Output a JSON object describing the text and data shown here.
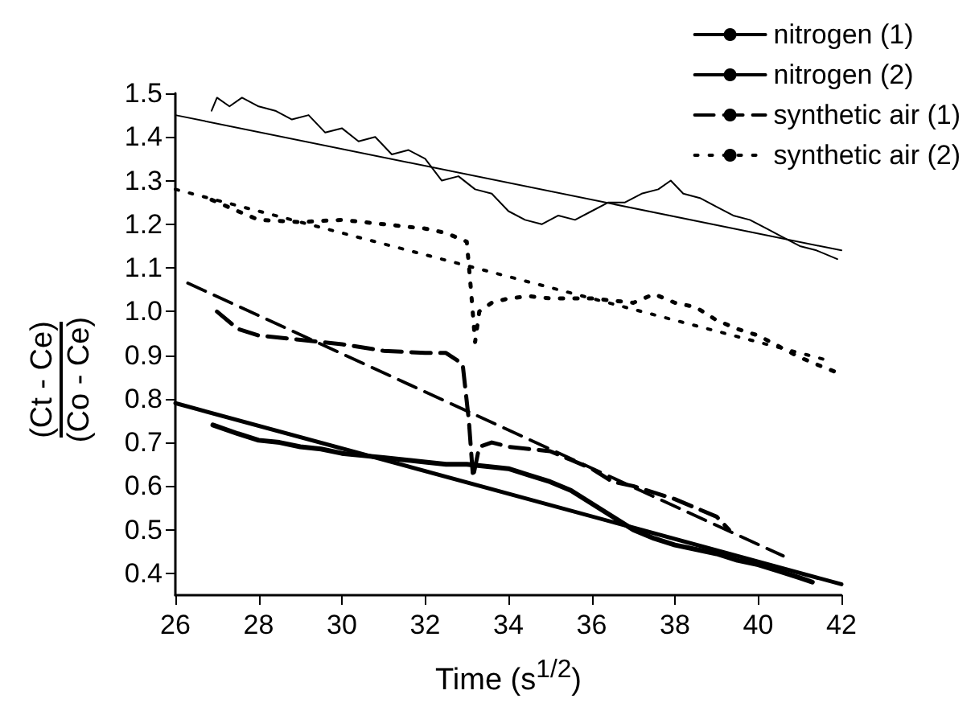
{
  "chart_data": {
    "type": "line",
    "xlabel": "Time (s$^{1/2}$)",
    "ylabel": "(Ct - Ce)\n(Co - Ce)",
    "xlim": [
      26,
      42
    ],
    "xticks": [
      26,
      28,
      30,
      32,
      34,
      36,
      38,
      40,
      42
    ],
    "ylim": [
      0.35,
      1.5
    ],
    "yticks": [
      {
        "value": 0.4,
        "label": "0.4"
      },
      {
        "value": 0.5,
        "label": "0.5"
      },
      {
        "value": 0.6,
        "label": "0.6"
      },
      {
        "value": 0.7,
        "label": "0.7"
      },
      {
        "value": 0.8,
        "label": "0.8"
      },
      {
        "value": 0.9,
        "label": "0.9"
      },
      {
        "value": 1.0,
        "label": "1.0"
      },
      {
        "value": 1.1,
        "label": "1.1"
      },
      {
        "value": 1.2,
        "label": "1.2"
      },
      {
        "value": 1.3,
        "label": "1.3"
      },
      {
        "value": 1.4,
        "label": "1.4"
      },
      {
        "value": 1.5,
        "label": "1.5"
      }
    ],
    "grid": false,
    "legend": "top right",
    "marker": "none",
    "series": [
      {
        "name": "nitrogen (1)",
        "color": "#000000",
        "line_style": "solid",
        "x": [
          26,
          42
        ],
        "values": [
          1.45,
          1.14
        ]
      },
      {
        "name": "nitrogen (2)",
        "color": "#000000",
        "line_style": "solid",
        "x": [
          26,
          42
        ],
        "values": [
          0.79,
          0.375
        ]
      },
      {
        "name": "synthetic air (1)",
        "color": "#000000",
        "line_style": "dashed",
        "x": [
          26.3,
          40.6
        ],
        "values": [
          1.065,
          0.44
        ]
      },
      {
        "name": "synthetic air (2)",
        "color": "#000000",
        "line_style": "dotted",
        "x": [
          26,
          41.8
        ],
        "values": [
          1.28,
          0.885
        ]
      },
      {
        "color": "#000000",
        "line_style": "solid",
        "x": [
          26.87,
          27,
          27.3,
          27.6,
          28,
          28.4,
          28.8,
          29.2,
          29.6,
          30,
          30.4,
          30.8,
          31.2,
          31.6,
          32,
          32.4,
          32.8,
          33.2,
          33.6,
          34,
          34.4,
          34.8,
          35.2,
          35.6,
          36,
          36.4,
          36.8,
          37.2,
          37.6,
          37.9,
          38.2,
          38.6,
          39,
          39.4,
          39.8,
          40.2,
          40.6,
          41,
          41.4,
          41.9
        ],
        "values": [
          1.46,
          1.49,
          1.47,
          1.49,
          1.47,
          1.46,
          1.44,
          1.45,
          1.41,
          1.42,
          1.39,
          1.4,
          1.36,
          1.37,
          1.35,
          1.3,
          1.31,
          1.28,
          1.27,
          1.23,
          1.21,
          1.2,
          1.22,
          1.21,
          1.23,
          1.25,
          1.25,
          1.27,
          1.28,
          1.3,
          1.27,
          1.26,
          1.24,
          1.22,
          1.21,
          1.19,
          1.17,
          1.15,
          1.14,
          1.12
        ]
      },
      {
        "color": "#000000",
        "line_style": "solid",
        "x": [
          26.9,
          27.5,
          28,
          28.5,
          29,
          29.5,
          30,
          30.5,
          31,
          31.5,
          32,
          32.5,
          33,
          33.5,
          34,
          34.5,
          35,
          35.5,
          36,
          36.5,
          37,
          37.5,
          38,
          38.5,
          39,
          39.5,
          40,
          40.5,
          41,
          41.3
        ],
        "values": [
          0.74,
          0.72,
          0.705,
          0.7,
          0.69,
          0.685,
          0.675,
          0.67,
          0.665,
          0.66,
          0.655,
          0.65,
          0.65,
          0.645,
          0.64,
          0.625,
          0.61,
          0.59,
          0.56,
          0.53,
          0.5,
          0.48,
          0.465,
          0.455,
          0.445,
          0.43,
          0.42,
          0.405,
          0.39,
          0.38
        ]
      },
      {
        "color": "#000000",
        "line_style": "dashed",
        "x": [
          27,
          27.5,
          28,
          29,
          30,
          31,
          32,
          32.5,
          32.9,
          33.05,
          33.15,
          33.3,
          33.6,
          34,
          35,
          35.5,
          36,
          36.5,
          37,
          38,
          38.5,
          39,
          39.3
        ],
        "values": [
          1.0,
          0.96,
          0.945,
          0.935,
          0.925,
          0.91,
          0.905,
          0.905,
          0.88,
          0.75,
          0.62,
          0.69,
          0.7,
          0.69,
          0.68,
          0.66,
          0.64,
          0.61,
          0.6,
          0.57,
          0.55,
          0.53,
          0.5
        ]
      },
      {
        "color": "#000000",
        "line_style": "dotted",
        "x": [
          26.87,
          27.5,
          28,
          29,
          30,
          31,
          32,
          32.5,
          33,
          33.1,
          33.2,
          33.3,
          33.6,
          34,
          34.5,
          35,
          36,
          37,
          37.5,
          38,
          38.5,
          39,
          39.5,
          40,
          40.5,
          41,
          41.5,
          41.9
        ],
        "values": [
          1.256,
          1.23,
          1.21,
          1.205,
          1.21,
          1.2,
          1.19,
          1.18,
          1.16,
          1.05,
          0.93,
          1.0,
          1.02,
          1.03,
          1.035,
          1.03,
          1.03,
          1.02,
          1.04,
          1.02,
          1.01,
          0.98,
          0.96,
          0.945,
          0.92,
          0.895,
          0.875,
          0.86
        ]
      }
    ]
  }
}
